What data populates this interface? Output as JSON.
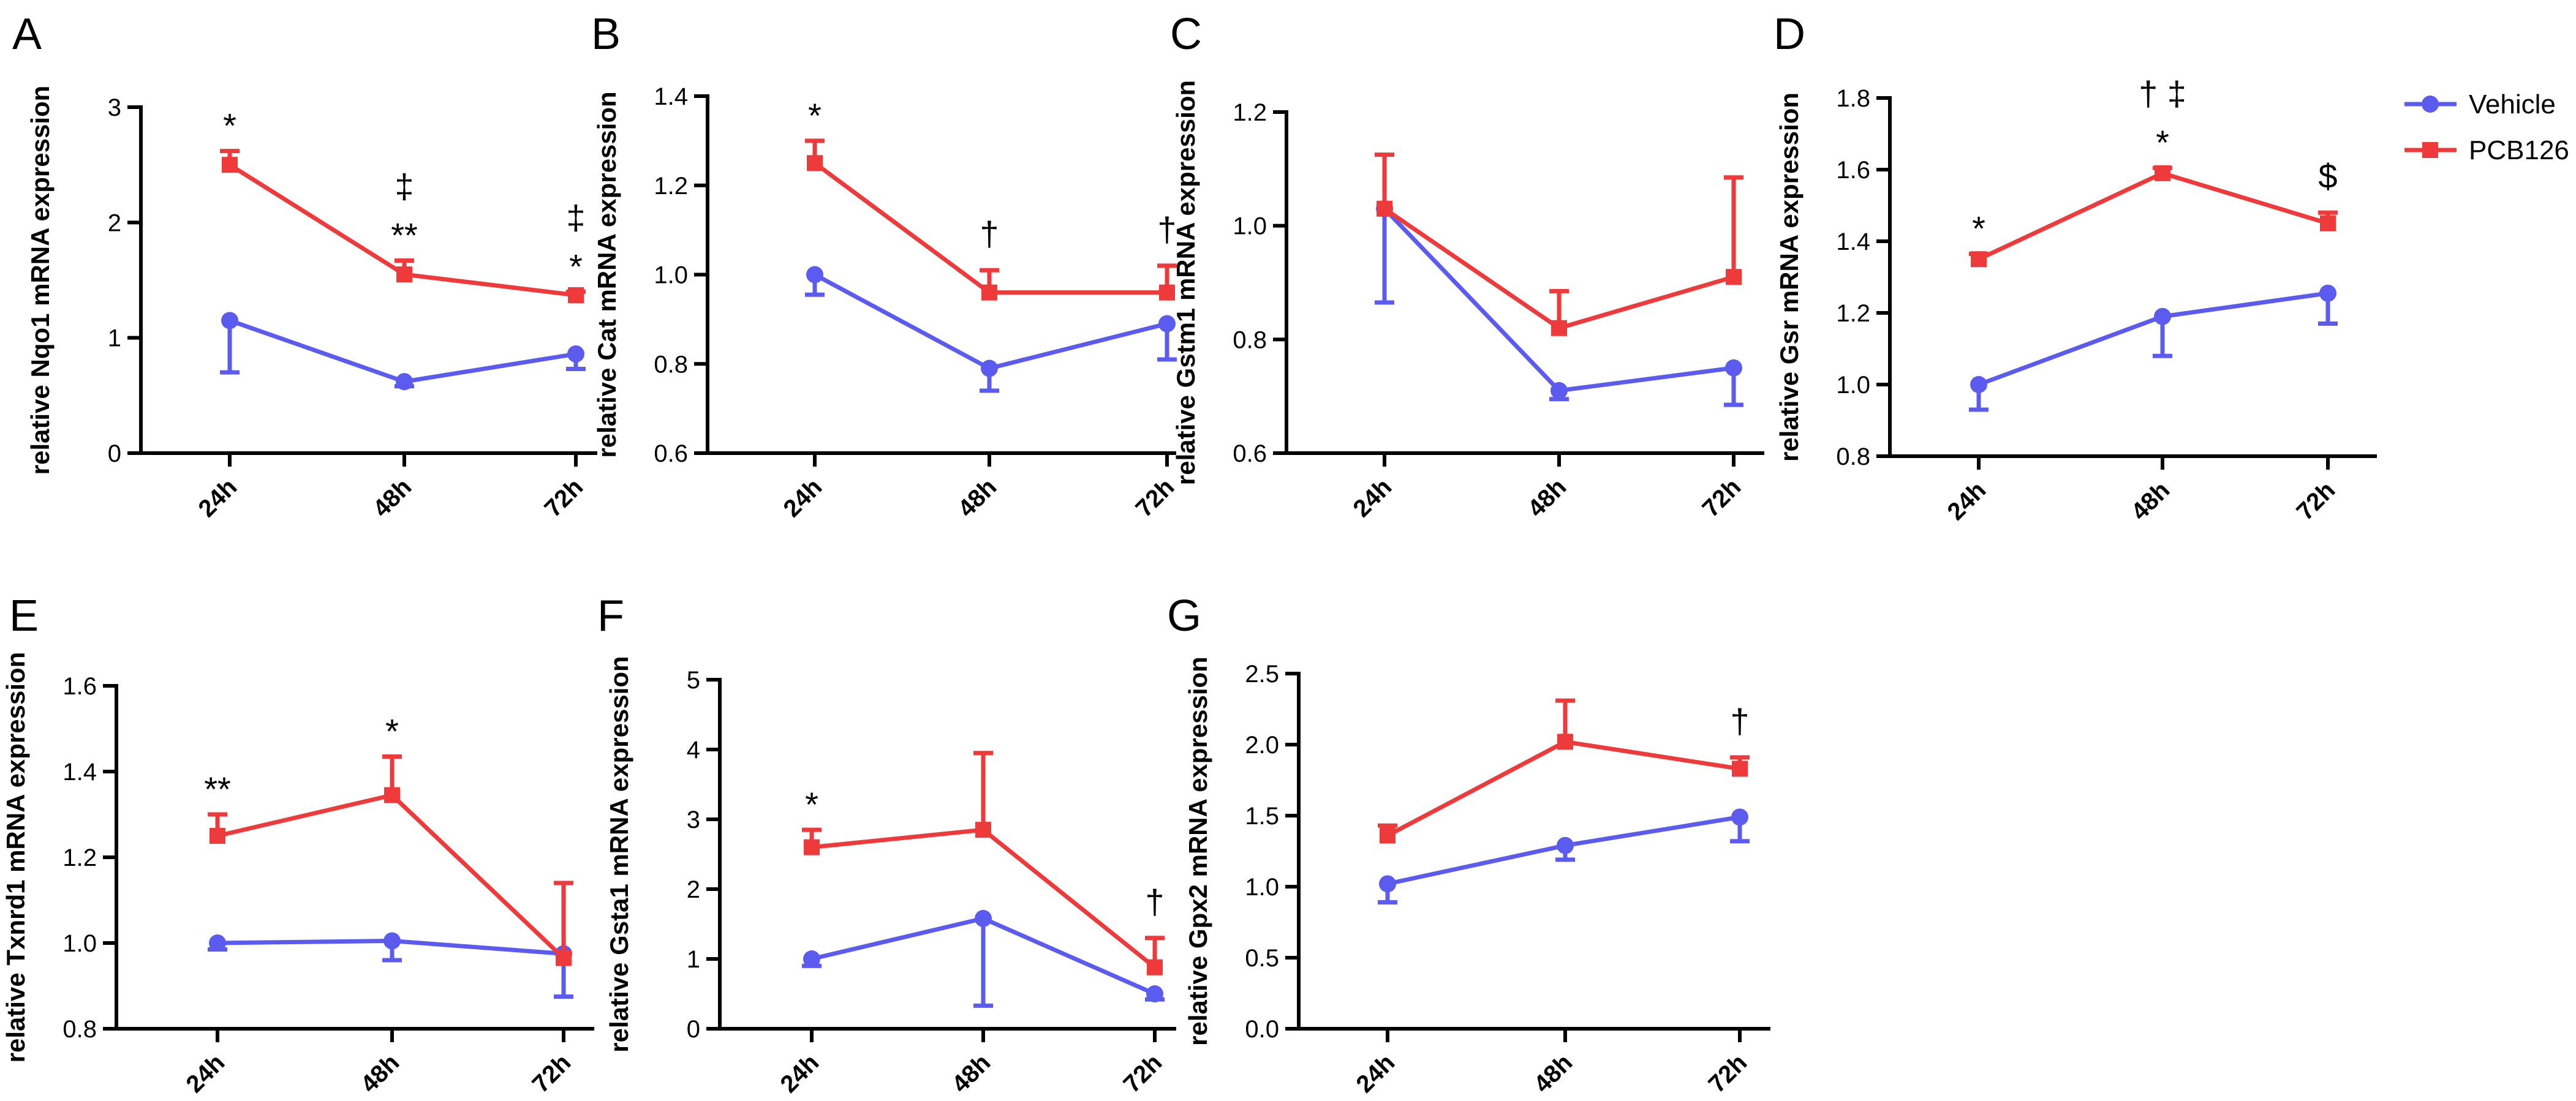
{
  "figure": {
    "legend": [
      {
        "name": "Vehicle",
        "color": "#5b5bf0",
        "marker": "circle"
      },
      {
        "name": "PCB126",
        "color": "#ee3a3a",
        "marker": "square"
      }
    ]
  },
  "chart_data": [
    {
      "panel": "A",
      "type": "line",
      "ylabel": "relative Nqo1 mRNA expression",
      "categories": [
        "24h",
        "48h",
        "72h"
      ],
      "ylim": [
        0,
        3
      ],
      "yticks": [
        "0",
        "1",
        "2",
        "3"
      ],
      "ytick_values": [
        0,
        1,
        2,
        3
      ],
      "series": [
        {
          "name": "Vehicle",
          "values": [
            1.15,
            0.62,
            0.86
          ],
          "err": [
            0.45,
            0.04,
            0.13
          ]
        },
        {
          "name": "PCB126",
          "values": [
            2.5,
            1.55,
            1.37
          ],
          "err": [
            0.12,
            0.12,
            0.03
          ]
        }
      ],
      "annotations": [
        {
          "category": 0,
          "lines": [
            "*"
          ]
        },
        {
          "category": 1,
          "lines": [
            "‡",
            "**"
          ]
        },
        {
          "category": 2,
          "lines": [
            "‡",
            "*"
          ]
        }
      ]
    },
    {
      "panel": "B",
      "type": "line",
      "ylabel": "relative Cat mRNA expression",
      "categories": [
        "24h",
        "48h",
        "72h"
      ],
      "ylim": [
        0.6,
        1.4
      ],
      "yticks": [
        "0.6",
        "0.8",
        "1.0",
        "1.2",
        "1.4"
      ],
      "ytick_values": [
        0.6,
        0.8,
        1.0,
        1.2,
        1.4
      ],
      "series": [
        {
          "name": "Vehicle",
          "values": [
            1.0,
            0.79,
            0.89
          ],
          "err": [
            0.045,
            0.05,
            0.08
          ]
        },
        {
          "name": "PCB126",
          "values": [
            1.25,
            0.96,
            0.96
          ],
          "err": [
            0.05,
            0.05,
            0.06
          ]
        }
      ],
      "annotations": [
        {
          "category": 0,
          "lines": [
            "*"
          ]
        },
        {
          "category": 1,
          "lines": [
            "†"
          ]
        },
        {
          "category": 2,
          "lines": [
            "†"
          ]
        }
      ]
    },
    {
      "panel": "C",
      "type": "line",
      "ylabel": "relative Gstm1 mRNA expression",
      "categories": [
        "24h",
        "48h",
        "72h"
      ],
      "ylim": [
        0.6,
        1.2
      ],
      "yticks": [
        "0.6",
        "0.8",
        "1.0",
        "1.2"
      ],
      "ytick_values": [
        0.6,
        0.8,
        1.0,
        1.2
      ],
      "series": [
        {
          "name": "Vehicle",
          "values": [
            1.03,
            0.71,
            0.75
          ],
          "err": [
            0.165,
            0.015,
            0.065
          ]
        },
        {
          "name": "PCB126",
          "values": [
            1.03,
            0.82,
            0.91
          ],
          "err": [
            0.095,
            0.065,
            0.175
          ]
        }
      ],
      "annotations": []
    },
    {
      "panel": "D",
      "type": "line",
      "ylabel": "relative Gsr mRNA expression",
      "categories": [
        "24h",
        "48h",
        "72h"
      ],
      "ylim": [
        0.8,
        1.8
      ],
      "yticks": [
        "0.8",
        "1.0",
        "1.2",
        "1.4",
        "1.6",
        "1.8"
      ],
      "ytick_values": [
        0.8,
        1.0,
        1.2,
        1.4,
        1.6,
        1.8
      ],
      "series": [
        {
          "name": "Vehicle",
          "values": [
            1.0,
            1.19,
            1.255
          ],
          "err": [
            0.07,
            0.11,
            0.085
          ]
        },
        {
          "name": "PCB126",
          "values": [
            1.35,
            1.59,
            1.45
          ],
          "err": [
            0.015,
            0.015,
            0.03
          ]
        }
      ],
      "annotations": [
        {
          "category": 0,
          "lines": [
            "*"
          ]
        },
        {
          "category": 1,
          "lines": [
            "† ‡",
            "*"
          ]
        },
        {
          "category": 2,
          "lines": [
            "$"
          ]
        }
      ]
    },
    {
      "panel": "E",
      "type": "line",
      "ylabel": "relative Txnrd1 mRNA expression",
      "categories": [
        "24h",
        "48h",
        "72h"
      ],
      "ylim": [
        0.8,
        1.6
      ],
      "yticks": [
        "0.8",
        "1.0",
        "1.2",
        "1.4",
        "1.6"
      ],
      "ytick_values": [
        0.8,
        1.0,
        1.2,
        1.4,
        1.6
      ],
      "series": [
        {
          "name": "Vehicle",
          "values": [
            1.0,
            1.005,
            0.975
          ],
          "err": [
            0.015,
            0.045,
            0.1
          ]
        },
        {
          "name": "PCB126",
          "values": [
            1.25,
            1.345,
            0.965
          ],
          "err": [
            0.05,
            0.09,
            0.175
          ]
        }
      ],
      "annotations": [
        {
          "category": 0,
          "lines": [
            "**"
          ]
        },
        {
          "category": 1,
          "lines": [
            "*"
          ]
        }
      ]
    },
    {
      "panel": "F",
      "type": "line",
      "ylabel": "relative Gsta1 mRNA expression",
      "categories": [
        "24h",
        "48h",
        "72h"
      ],
      "ylim": [
        0,
        5
      ],
      "yticks": [
        "0",
        "1",
        "2",
        "3",
        "4",
        "5"
      ],
      "ytick_values": [
        0,
        1,
        2,
        3,
        4,
        5
      ],
      "series": [
        {
          "name": "Vehicle",
          "values": [
            1.0,
            1.58,
            0.5
          ],
          "err": [
            0.1,
            1.25,
            0.08
          ]
        },
        {
          "name": "PCB126",
          "values": [
            2.6,
            2.85,
            0.88
          ],
          "err": [
            0.25,
            1.1,
            0.42
          ]
        }
      ],
      "annotations": [
        {
          "category": 0,
          "lines": [
            "*"
          ]
        },
        {
          "category": 2,
          "lines": [
            "†"
          ]
        }
      ]
    },
    {
      "panel": "G",
      "type": "line",
      "ylabel": "relative Gpx2 mRNA expression",
      "categories": [
        "24h",
        "48h",
        "72h"
      ],
      "ylim": [
        0,
        2.5
      ],
      "yticks": [
        "0.0",
        "0.5",
        "1.0",
        "1.5",
        "2.0",
        "2.5"
      ],
      "ytick_values": [
        0,
        0.5,
        1.0,
        1.5,
        2.0,
        2.5
      ],
      "series": [
        {
          "name": "Vehicle",
          "values": [
            1.02,
            1.29,
            1.49
          ],
          "err": [
            0.13,
            0.1,
            0.17
          ]
        },
        {
          "name": "PCB126",
          "values": [
            1.36,
            2.02,
            1.83
          ],
          "err": [
            0.07,
            0.29,
            0.08
          ]
        }
      ],
      "annotations": [
        {
          "category": 2,
          "lines": [
            "†"
          ]
        }
      ]
    }
  ]
}
